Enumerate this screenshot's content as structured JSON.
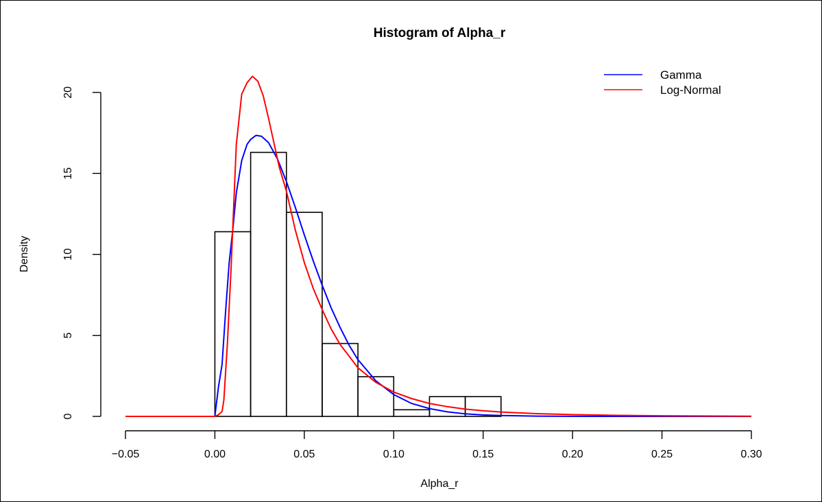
{
  "chart_data": {
    "type": "bar",
    "title": "Histogram of Alpha_r",
    "xlabel": "Alpha_r",
    "ylabel": "Density",
    "xlim": [
      -0.05,
      0.3
    ],
    "ylim": [
      0,
      22
    ],
    "x_ticks": [
      -0.05,
      0.0,
      0.05,
      0.1,
      0.15,
      0.2,
      0.25,
      0.3
    ],
    "x_tick_labels": [
      "−0.05",
      "0.00",
      "0.05",
      "0.10",
      "0.15",
      "0.20",
      "0.25",
      "0.30"
    ],
    "y_ticks": [
      0,
      5,
      10,
      15,
      20
    ],
    "y_tick_labels": [
      "0",
      "5",
      "10",
      "15",
      "20"
    ],
    "grid": false,
    "legend_placement": "top-right",
    "histogram": {
      "bins": [
        {
          "x0": 0.0,
          "x1": 0.02,
          "density": 11.4
        },
        {
          "x0": 0.02,
          "x1": 0.04,
          "density": 16.3
        },
        {
          "x0": 0.04,
          "x1": 0.06,
          "density": 12.6
        },
        {
          "x0": 0.06,
          "x1": 0.08,
          "density": 4.5
        },
        {
          "x0": 0.08,
          "x1": 0.1,
          "density": 2.45
        },
        {
          "x0": 0.1,
          "x1": 0.12,
          "density": 0.41
        },
        {
          "x0": 0.12,
          "x1": 0.14,
          "density": 1.22
        },
        {
          "x0": 0.14,
          "x1": 0.16,
          "density": 1.22
        }
      ]
    },
    "series": [
      {
        "name": "Gamma",
        "color": "#0000ff",
        "points": [
          [
            -0.05,
            0
          ],
          [
            0.0,
            0
          ],
          [
            0.002,
            1.8
          ],
          [
            0.004,
            3.2
          ],
          [
            0.006,
            6.5
          ],
          [
            0.008,
            9.5
          ],
          [
            0.01,
            11.5
          ],
          [
            0.012,
            13.8
          ],
          [
            0.015,
            15.8
          ],
          [
            0.018,
            16.8
          ],
          [
            0.02,
            17.1
          ],
          [
            0.023,
            17.35
          ],
          [
            0.026,
            17.3
          ],
          [
            0.03,
            16.9
          ],
          [
            0.035,
            15.9
          ],
          [
            0.04,
            14.5
          ],
          [
            0.045,
            12.9
          ],
          [
            0.05,
            11.2
          ],
          [
            0.055,
            9.6
          ],
          [
            0.06,
            8.1
          ],
          [
            0.065,
            6.7
          ],
          [
            0.07,
            5.5
          ],
          [
            0.075,
            4.4
          ],
          [
            0.08,
            3.5
          ],
          [
            0.09,
            2.2
          ],
          [
            0.1,
            1.35
          ],
          [
            0.11,
            0.8
          ],
          [
            0.12,
            0.48
          ],
          [
            0.13,
            0.28
          ],
          [
            0.14,
            0.16
          ],
          [
            0.15,
            0.09
          ],
          [
            0.16,
            0.05
          ],
          [
            0.18,
            0.015
          ],
          [
            0.2,
            0.005
          ],
          [
            0.25,
            0
          ],
          [
            0.3,
            0
          ]
        ]
      },
      {
        "name": "Log-Normal",
        "color": "#ff0000",
        "points": [
          [
            -0.05,
            0
          ],
          [
            0.0,
            0
          ],
          [
            0.002,
            0.1
          ],
          [
            0.004,
            0.3
          ],
          [
            0.005,
            1.0
          ],
          [
            0.007,
            4.5
          ],
          [
            0.009,
            9.0
          ],
          [
            0.012,
            16.8
          ],
          [
            0.015,
            19.9
          ],
          [
            0.018,
            20.6
          ],
          [
            0.021,
            21.0
          ],
          [
            0.024,
            20.7
          ],
          [
            0.027,
            19.8
          ],
          [
            0.03,
            18.4
          ],
          [
            0.033,
            16.9
          ],
          [
            0.036,
            15.4
          ],
          [
            0.04,
            13.9
          ],
          [
            0.045,
            11.5
          ],
          [
            0.05,
            9.5
          ],
          [
            0.055,
            7.9
          ],
          [
            0.06,
            6.6
          ],
          [
            0.065,
            5.4
          ],
          [
            0.07,
            4.45
          ],
          [
            0.08,
            3.0
          ],
          [
            0.09,
            2.1
          ],
          [
            0.1,
            1.5
          ],
          [
            0.11,
            1.1
          ],
          [
            0.12,
            0.8
          ],
          [
            0.13,
            0.6
          ],
          [
            0.14,
            0.45
          ],
          [
            0.15,
            0.35
          ],
          [
            0.16,
            0.27
          ],
          [
            0.18,
            0.17
          ],
          [
            0.2,
            0.11
          ],
          [
            0.22,
            0.07
          ],
          [
            0.25,
            0.04
          ],
          [
            0.3,
            0.01
          ]
        ]
      }
    ]
  }
}
